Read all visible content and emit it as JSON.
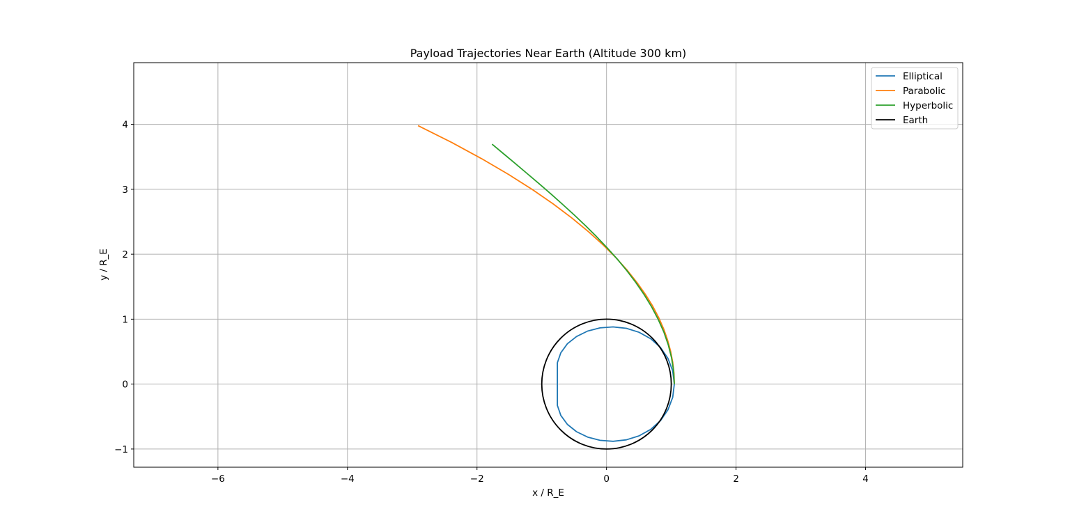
{
  "chart_data": {
    "type": "line",
    "title": "Payload Trajectories Near Earth (Altitude 300 km)",
    "xlabel": "x / R_E",
    "ylabel": "y / R_E",
    "xlim": [
      -7.3,
      5.5
    ],
    "ylim": [
      -1.28,
      4.95
    ],
    "x_ticks": [
      -6,
      -4,
      -2,
      0,
      2,
      4
    ],
    "y_ticks": [
      -1,
      0,
      1,
      2,
      3,
      4
    ],
    "x_tick_labels": [
      "−6",
      "−4",
      "−2",
      "0",
      "2",
      "4"
    ],
    "y_tick_labels": [
      "−1",
      "0",
      "1",
      "2",
      "3",
      "4"
    ],
    "grid": true,
    "legend_position": "top-right",
    "series": [
      {
        "name": "Elliptical",
        "color": "#1f77b4",
        "x": [
          1.047,
          1.022,
          0.949,
          0.834,
          0.682,
          0.502,
          0.306,
          0.101,
          -0.101,
          -0.292,
          -0.463,
          -0.604,
          -0.705,
          -0.759,
          -0.759,
          -0.705,
          -0.604,
          -0.463,
          -0.292,
          -0.101,
          0.101,
          0.306,
          0.502,
          0.682,
          0.834,
          0.949,
          1.022,
          1.047
        ],
        "y": [
          0.0,
          0.203,
          0.395,
          0.563,
          0.698,
          0.798,
          0.859,
          0.881,
          0.866,
          0.816,
          0.733,
          0.621,
          0.483,
          0.328,
          -0.328,
          -0.483,
          -0.621,
          -0.733,
          -0.816,
          -0.866,
          -0.881,
          -0.859,
          -0.798,
          -0.698,
          -0.563,
          -0.395,
          -0.203,
          0.0
        ]
      },
      {
        "name": "Parabolic",
        "color": "#ff7f0e",
        "x": [
          1.047,
          1.041,
          1.022,
          0.99,
          0.944,
          0.883,
          0.807,
          0.714,
          0.603,
          0.473,
          0.322,
          0.149,
          -0.05,
          -0.276,
          -0.532,
          -0.822,
          -1.148,
          -1.515,
          -1.928,
          -2.391,
          -2.91
        ],
        "y": [
          0.0,
          0.168,
          0.336,
          0.505,
          0.675,
          0.847,
          1.021,
          1.198,
          1.378,
          1.562,
          1.75,
          1.943,
          2.141,
          2.345,
          2.556,
          2.773,
          2.998,
          3.23,
          3.471,
          3.721,
          3.981
        ]
      },
      {
        "name": "Hyperbolic",
        "color": "#2ca02c",
        "x": [
          1.047,
          1.036,
          1.004,
          0.953,
          0.884,
          0.797,
          0.696,
          0.58,
          0.452,
          0.313,
          0.165,
          0.008,
          -0.156,
          -0.326,
          -0.5,
          -0.678,
          -0.858,
          -1.04,
          -1.223,
          -1.405,
          -1.587,
          -1.767
        ],
        "y": [
          0.0,
          0.203,
          0.405,
          0.605,
          0.803,
          0.998,
          1.19,
          1.379,
          1.565,
          1.747,
          1.926,
          2.101,
          2.273,
          2.441,
          2.606,
          2.768,
          2.928,
          3.085,
          3.24,
          3.393,
          3.545,
          3.694
        ]
      },
      {
        "name": "Earth",
        "color": "#000000",
        "shape": "circle",
        "center": [
          0,
          0
        ],
        "radius": 1.0
      }
    ]
  }
}
